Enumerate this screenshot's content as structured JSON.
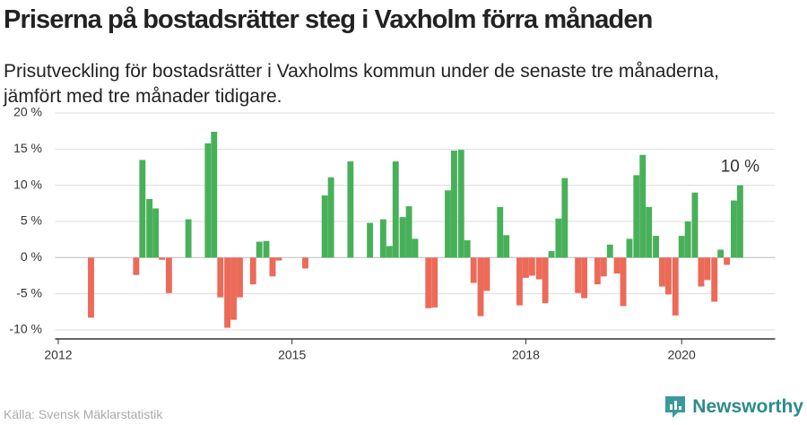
{
  "chart_data": {
    "type": "bar",
    "title": "Priserna på bostadsrätter steg i Vaxholm förra månaden",
    "subtitle": "Prisutveckling för bostadsrätter i Vaxholms kommun under de senaste tre månaderna, jämfört med tre månader tidigare.",
    "source": "Källa: Svensk Mäklarstatistik",
    "brand": "Newsworthy",
    "x": [
      2012.42,
      2013.0,
      2013.08,
      2013.17,
      2013.25,
      2013.33,
      2013.42,
      2013.67,
      2013.92,
      2014.0,
      2014.08,
      2014.17,
      2014.25,
      2014.33,
      2014.5,
      2014.58,
      2014.67,
      2014.75,
      2014.83,
      2015.17,
      2015.42,
      2015.5,
      2015.75,
      2016.0,
      2016.17,
      2016.25,
      2016.33,
      2016.42,
      2016.5,
      2016.58,
      2016.75,
      2016.83,
      2017.0,
      2017.08,
      2017.17,
      2017.25,
      2017.33,
      2017.42,
      2017.5,
      2017.67,
      2017.75,
      2017.92,
      2018.0,
      2018.08,
      2018.17,
      2018.25,
      2018.33,
      2018.42,
      2018.5,
      2018.67,
      2018.75,
      2018.92,
      2019.0,
      2019.08,
      2019.17,
      2019.25,
      2019.33,
      2019.42,
      2019.5,
      2019.58,
      2019.67,
      2019.75,
      2019.83,
      2019.92,
      2020.0,
      2020.08,
      2020.17,
      2020.25,
      2020.33,
      2020.42,
      2020.5,
      2020.58,
      2020.67,
      2020.75
    ],
    "values": [
      -8.3,
      -2.4,
      13.5,
      8.1,
      6.8,
      -0.3,
      -4.9,
      5.3,
      15.8,
      17.4,
      -5.5,
      -9.7,
      -8.6,
      -5.5,
      -3.7,
      2.2,
      2.3,
      -2.6,
      -0.4,
      -1.5,
      8.6,
      11.1,
      13.3,
      4.8,
      5.3,
      1.6,
      13.3,
      5.6,
      7.1,
      2.6,
      -7.0,
      -6.9,
      9.3,
      14.8,
      14.9,
      2.4,
      -3.5,
      -8.1,
      -4.6,
      7.0,
      3.1,
      -6.6,
      -2.8,
      -2.5,
      -3.0,
      -6.3,
      0.9,
      5.4,
      11.0,
      -4.9,
      -5.6,
      -3.7,
      -2.6,
      1.8,
      -2.2,
      -6.7,
      2.6,
      11.4,
      14.2,
      7.0,
      3.0,
      -4.0,
      -5.1,
      -8.0,
      3.0,
      5.0,
      9.0,
      -4.0,
      -3.1,
      -6.1,
      1.1,
      -1.0,
      7.9,
      10.0
    ],
    "value_labels": [
      null,
      null,
      null,
      null,
      null,
      null,
      null,
      null,
      null,
      null,
      null,
      null,
      null,
      null,
      null,
      null,
      null,
      null,
      null,
      null,
      null,
      null,
      null,
      null,
      null,
      null,
      null,
      null,
      null,
      null,
      null,
      null,
      null,
      null,
      null,
      null,
      null,
      null,
      null,
      null,
      null,
      null,
      null,
      null,
      null,
      null,
      null,
      null,
      null,
      null,
      null,
      null,
      null,
      null,
      null,
      null,
      null,
      null,
      null,
      null,
      null,
      null,
      null,
      null,
      null,
      null,
      null,
      null,
      null,
      null,
      null,
      null,
      null,
      "10 %"
    ],
    "positive_color": "#49b05a",
    "negative_color": "#ec6a58",
    "xlim": [
      2011.96,
      2021.2
    ],
    "xticks": [
      2012,
      2015,
      2018,
      2020
    ],
    "ylim": [
      -10.5,
      20
    ],
    "yticks": [
      {
        "value": 20,
        "label": "20 %"
      },
      {
        "value": 15,
        "label": "15 %"
      },
      {
        "value": 10,
        "label": "10 %"
      },
      {
        "value": 5,
        "label": "5 %"
      },
      {
        "value": 0,
        "label": "0 %"
      },
      {
        "value": -5,
        "label": "-5 %"
      },
      {
        "value": -10,
        "label": "-10 %"
      }
    ],
    "grid": true
  }
}
